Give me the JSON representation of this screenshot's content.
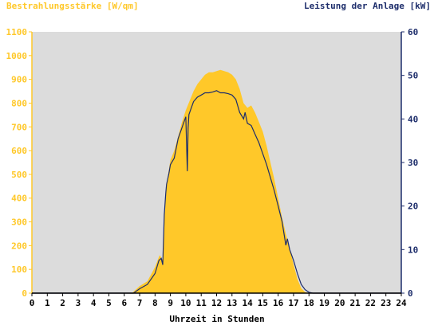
{
  "colors": {
    "background": "#ffffff",
    "plot_background": "#dcdcdc",
    "irradiance": "#ffc829",
    "power": "#1d2d6b",
    "x_axis": "#000000"
  },
  "chart_data": {
    "type": "area",
    "title": "",
    "xlabel": "Uhrzeit in Stunden",
    "ylabel": "Bestrahlungsstärke [W/qm]",
    "y2label": "Leistung der Anlage [kW]",
    "xlim": [
      0,
      24
    ],
    "ylim": [
      0,
      1100
    ],
    "y2lim": [
      0,
      60
    ],
    "x_ticks": [
      "0",
      "1",
      "2",
      "3",
      "4",
      "5",
      "6",
      "7",
      "8",
      "9",
      "10",
      "11",
      "12",
      "13",
      "14",
      "15",
      "16",
      "17",
      "18",
      "19",
      "20",
      "21",
      "22",
      "23",
      "24"
    ],
    "y_ticks": [
      "0",
      "100",
      "200",
      "300",
      "400",
      "500",
      "600",
      "700",
      "800",
      "900",
      "1000",
      "1100"
    ],
    "y2_ticks": [
      "0",
      "10",
      "20",
      "30",
      "40",
      "50",
      "60"
    ],
    "grid": false,
    "series": [
      {
        "name": "Bestrahlungsstärke [W/qm]",
        "axis": "left",
        "style": "area",
        "x": [
          0,
          6.5,
          7.0,
          7.5,
          8.0,
          8.3,
          8.5,
          8.6,
          8.75,
          8.9,
          9.0,
          9.25,
          9.5,
          9.75,
          10.0,
          10.25,
          10.5,
          10.75,
          11.0,
          11.25,
          11.5,
          11.75,
          12.0,
          12.25,
          12.5,
          12.75,
          13.0,
          13.25,
          13.5,
          13.75,
          14.0,
          14.25,
          14.5,
          14.75,
          15.0,
          15.25,
          15.5,
          15.75,
          16.0,
          16.25,
          16.5,
          16.75,
          17.0,
          17.25,
          17.5,
          17.75,
          18.0,
          18.25,
          24
        ],
        "y": [
          0,
          0,
          30,
          50,
          110,
          160,
          140,
          310,
          460,
          520,
          560,
          600,
          660,
          720,
          770,
          810,
          850,
          880,
          900,
          920,
          930,
          930,
          935,
          940,
          935,
          930,
          920,
          900,
          860,
          800,
          780,
          790,
          760,
          720,
          680,
          620,
          550,
          480,
          400,
          320,
          250,
          190,
          120,
          60,
          20,
          5,
          0,
          0,
          0
        ]
      },
      {
        "name": "Leistung der Anlage [kW]",
        "axis": "right",
        "style": "line",
        "x": [
          0,
          6.6,
          7.0,
          7.5,
          8.0,
          8.25,
          8.4,
          8.5,
          8.6,
          8.7,
          8.75,
          8.9,
          9.0,
          9.25,
          9.5,
          9.75,
          10.0,
          10.1,
          10.15,
          10.2,
          10.3,
          10.5,
          10.75,
          11.0,
          11.25,
          11.5,
          11.75,
          12.0,
          12.25,
          12.5,
          12.75,
          13.0,
          13.25,
          13.5,
          13.75,
          13.85,
          14.0,
          14.25,
          14.5,
          14.75,
          15.0,
          15.25,
          15.5,
          15.75,
          16.0,
          16.25,
          16.5,
          16.6,
          16.75,
          17.0,
          17.25,
          17.5,
          17.75,
          18.0,
          18.25,
          24
        ],
        "y": [
          0,
          0,
          1.0,
          2.0,
          4.5,
          7.5,
          8.0,
          6.5,
          18.0,
          23.0,
          25.0,
          27.5,
          29.5,
          31.0,
          35.5,
          38.0,
          40.5,
          28.0,
          38.0,
          41.0,
          42.0,
          44.0,
          45.0,
          45.5,
          46.0,
          46.0,
          46.2,
          46.5,
          46.0,
          46.0,
          45.8,
          45.5,
          44.5,
          41.5,
          40.0,
          41.5,
          39.0,
          38.5,
          36.5,
          34.5,
          32.0,
          29.5,
          26.5,
          23.5,
          20.0,
          16.5,
          11.0,
          12.5,
          10.0,
          7.5,
          4.5,
          2.0,
          0.8,
          0.2,
          0,
          0
        ]
      }
    ]
  }
}
